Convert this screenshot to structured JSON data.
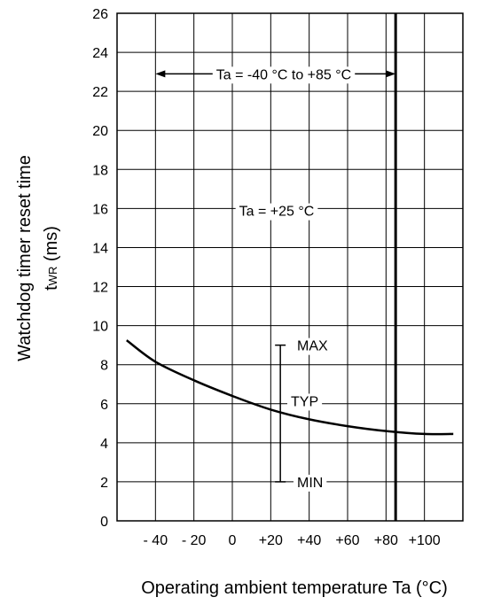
{
  "chart_data": {
    "type": "line",
    "xlabel": "Operating ambient temperature Ta (°C)",
    "ylabel_main": "Watchdog timer reset time",
    "ylabel_sym": "t",
    "ylabel_sub": "WR",
    "ylabel_unit": " (ms)",
    "xlim": [
      -60,
      120
    ],
    "ylim": [
      0,
      26
    ],
    "grid": true,
    "x_grid": [
      -40,
      -20,
      0,
      20,
      40,
      60,
      80,
      100
    ],
    "y_ticks": [
      0,
      2,
      4,
      6,
      8,
      10,
      12,
      14,
      16,
      18,
      20,
      22,
      24,
      26
    ],
    "x_ticks": [
      {
        "value": -40,
        "label": "- 40"
      },
      {
        "value": -20,
        "label": "- 20"
      },
      {
        "value": 0,
        "label": "0"
      },
      {
        "value": 20,
        "label": "+20"
      },
      {
        "value": 40,
        "label": "+40"
      },
      {
        "value": 60,
        "label": "+60"
      },
      {
        "value": 80,
        "label": "+80"
      },
      {
        "value": 100,
        "label": "+100"
      }
    ],
    "series": [
      {
        "x": [
          -55,
          -40,
          -20,
          0,
          20,
          40,
          60,
          80,
          100,
          115
        ],
        "y": [
          9.25,
          8.15,
          7.2,
          6.4,
          5.7,
          5.2,
          4.85,
          4.6,
          4.45,
          4.45
        ]
      }
    ],
    "boundary_x": 85,
    "range_bar": {
      "x": 25,
      "max": 9.0,
      "min": 2.0
    },
    "annotations": {
      "range": "Ta = -40 °C to +85 °C",
      "room": "Ta = +25 °C",
      "max": "MAX",
      "typ": "TYP",
      "min": "MIN"
    }
  }
}
